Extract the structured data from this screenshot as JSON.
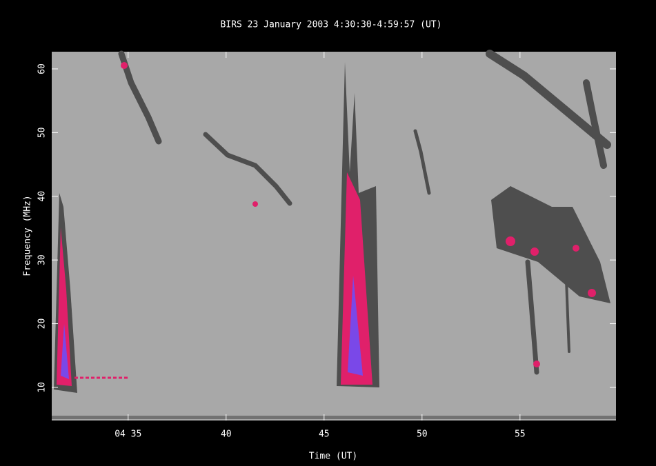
{
  "chart_data": {
    "type": "spectrogram",
    "title": "BIRS 23 January 2003 4:30:30-4:59:57 (UT)",
    "x_label": "Time (UT)",
    "y_label": "Frequency (MHz)",
    "xlim": [
      31.1,
      59.9
    ],
    "xticks": [
      {
        "value": 35,
        "label": "04 35"
      },
      40,
      45,
      50,
      55
    ],
    "ylim": [
      4.8,
      62.7
    ],
    "yticks": [
      10,
      20,
      30,
      40,
      50,
      60
    ],
    "color": "#a8a8a8"
  }
}
